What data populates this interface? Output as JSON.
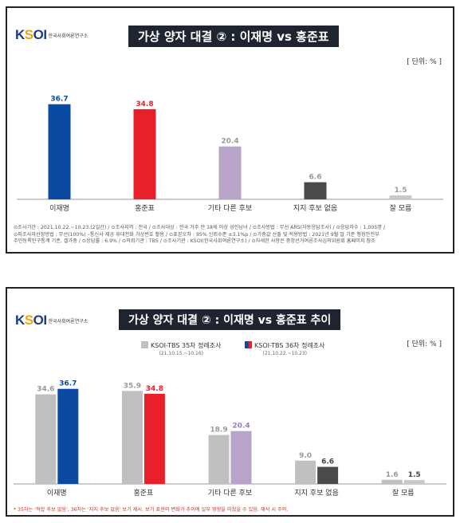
{
  "logo": {
    "brand": "KSOI",
    "org": "한국사회여론연구소"
  },
  "colors": {
    "lee": "#0b4aa2",
    "hong": "#e8202a",
    "other": "#b8a3c9",
    "none": "#4a4a4a",
    "dontknow": "#c8c8c8",
    "prev": "#c0c0c0",
    "title_bg": "#1f2530"
  },
  "chart_data": [
    {
      "type": "bar",
      "title": "가상 양자 대결 ② : 이재명 vs 홍준표",
      "unit": "[ 단위: % ]",
      "categories": [
        "이재명",
        "홍준표",
        "기타 다른 후보",
        "지지 후보 없음",
        "잘 모름"
      ],
      "values": [
        36.7,
        34.8,
        20.4,
        6.6,
        1.5
      ],
      "value_labels": [
        "36.7",
        "34.8",
        "20.4",
        "6.6",
        "1.5"
      ],
      "ylim": [
        0,
        40
      ],
      "grid": false
    },
    {
      "type": "bar",
      "title": "가상 양자 대결 ② : 이재명 vs 홍준표 추이",
      "unit": "[ 단위: % ]",
      "categories": [
        "이재명",
        "홍준표",
        "기타 다른 후보",
        "지지 후보 없음",
        "잘 모름"
      ],
      "series": [
        {
          "name": "KSOI-TBS 35차 정례조사",
          "period": "(21.10.15.~10.16)",
          "values": [
            34.6,
            35.9,
            18.9,
            9.0,
            1.6
          ],
          "labels": [
            "34.6",
            "35.9",
            "18.9",
            "9.0",
            "1.6"
          ]
        },
        {
          "name": "KSOI-TBS 36차 정례조사",
          "period": "(21.10.22.~10.23)",
          "values": [
            36.7,
            34.8,
            20.4,
            6.6,
            1.5
          ],
          "labels": [
            "36.7",
            "34.8",
            "20.4",
            "6.6",
            "1.5"
          ]
        }
      ],
      "legend_position": "top",
      "ylim": [
        0,
        40
      ],
      "grid": false
    }
  ],
  "footer1": {
    "line1": "⊙조사기간 : 2021.10.22.~10.23.(2일간)  / ⊙조사지역 : 전국  / ⊙조사대상 : 전국 거주 만 18세 이상 성인남녀  / ⊙조사방법 : 무선 ARS(자동응답조사)  / ⊙응답자수 : 1,005명 /",
    "line2": "⊙피조사자선정방법 : 무선(100%) –통신사 제공 휴대전화 가상번호 활용  / ⊙표본오차 : 95% 신뢰수준 ±3.1%p  / ⊙가중값 산출 및 적용방법 : 2021년 9월 말 기준 행정안전부",
    "line3": "주민등록인구통계 기준, 셀가중  / ⊙응답률 : 6.9%  / ⊙의뢰기관 : TBS  / ⊙조사기관 : KSOI(한국사회여론연구소)  / ⊙자세한 사항은 중앙선거여론조사심의위원회 홈페이지 참조"
  },
  "note2": "* 35차는 '적합 후보 없음', 36차는 '지지 후보 없음' 보기 제시. 보기 표현의 변화가 추이에 일부 영향을 미쳤을 수 있음. 해석 시 주의."
}
